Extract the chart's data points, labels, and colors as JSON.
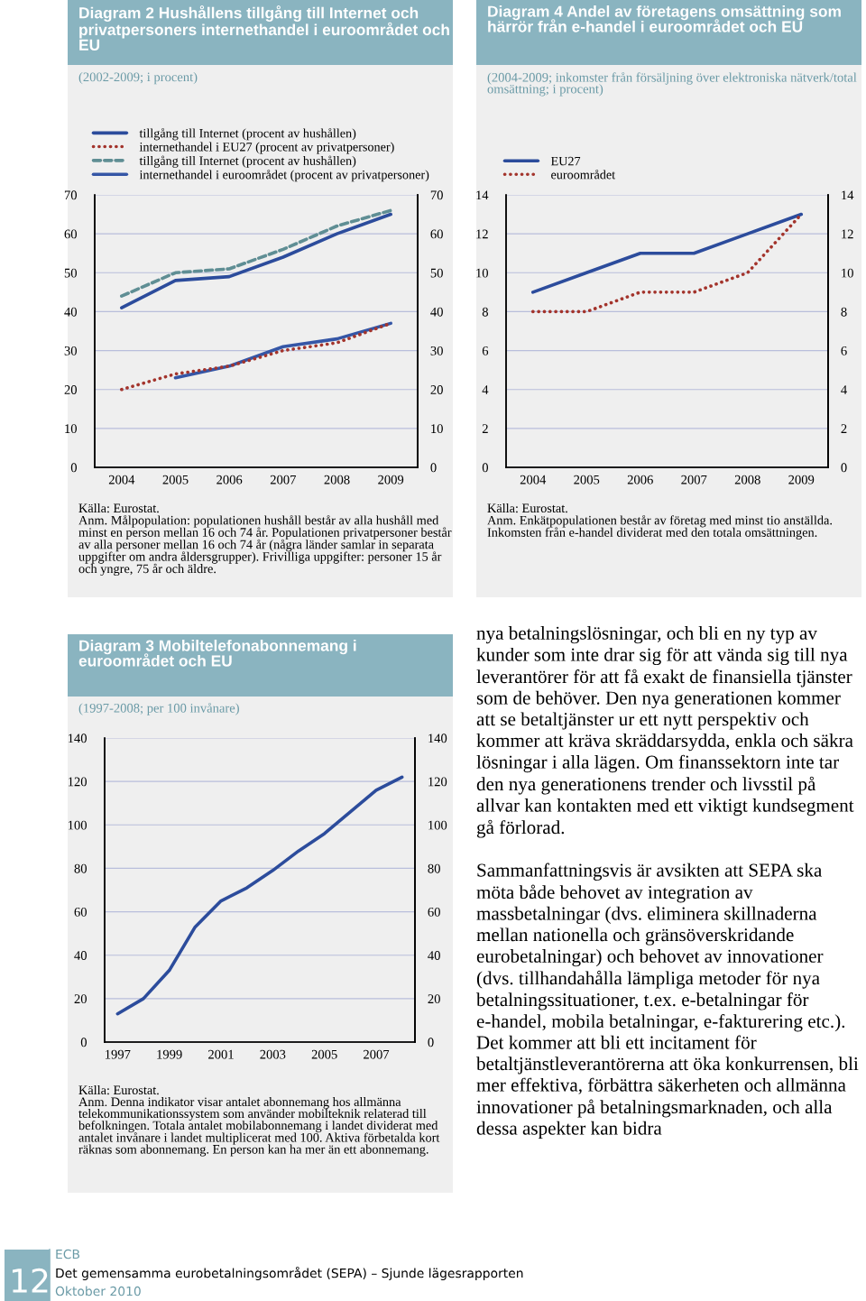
{
  "chart_data": [
    {
      "type": "line",
      "title": "Diagram 2 Hushållens tillgång till Internet och privatpersoners internethandel i euroområdet och EU",
      "subtitle": "(2002-2009; i procent)",
      "categories": [
        "2004",
        "2005",
        "2006",
        "2007",
        "2008",
        "2009"
      ],
      "series": [
        {
          "name": "tillgång till Internet (procent av hushållen)",
          "color": "#2c4c9c",
          "line_style": "solid",
          "values": [
            41,
            48,
            49,
            54,
            60,
            65
          ]
        },
        {
          "name": "internethandel i EU27 (procent av privatpersoner)",
          "color": "#a3342c",
          "line_style": "dotted",
          "values": [
            20,
            24,
            26,
            30,
            32,
            37
          ]
        },
        {
          "name": "tillgång till Internet (procent av hushållen)",
          "color": "#5f8e94",
          "line_style": "dashed",
          "values": [
            44,
            50,
            51,
            56,
            62,
            66
          ]
        },
        {
          "name": "internethandel i euroområdet (procent av privatpersoner)",
          "color": "#3556a6",
          "line_style": "solid",
          "values": [
            null,
            23,
            26,
            31,
            33,
            37
          ]
        }
      ],
      "ylim": [
        0,
        70
      ],
      "yticks": [
        0,
        10,
        20,
        30,
        40,
        50,
        60,
        70
      ],
      "y2lim": [
        0,
        70
      ],
      "y2ticks": [
        0,
        10,
        20,
        30,
        40,
        50,
        60,
        70
      ],
      "grid": true,
      "legend": "top",
      "annotations": [
        "Källa: Eurostat.",
        "Anm. Målpopulation: populationen hushåll består av alla hushåll med minst en person mellan 16 och 74 år. Populationen privatpersoner består av alla personer mellan 16 och 74 år (några länder samlar in separata uppgifter om andra åldersgrupper). Frivilliga uppgifter: personer 15 år och yngre, 75 år och äldre."
      ]
    },
    {
      "type": "line",
      "title": "Diagram 4 Andel av företagens omsättning som härrör från e-handel i euroområdet och EU",
      "subtitle": "(2004-2009; inkomster från försäljning över elektroniska nätverk/total omsättning; i procent)",
      "categories": [
        "2004",
        "2005",
        "2006",
        "2007",
        "2008",
        "2009"
      ],
      "series": [
        {
          "name": "EU27",
          "color": "#2c4c9c",
          "line_style": "solid",
          "values": [
            9,
            10,
            11,
            11,
            12,
            13
          ]
        },
        {
          "name": "euroområdet",
          "color": "#a3342c",
          "line_style": "dotted",
          "values": [
            8,
            8,
            9,
            9,
            10,
            13
          ]
        }
      ],
      "ylim": [
        0,
        14
      ],
      "yticks": [
        0,
        2,
        4,
        6,
        8,
        10,
        12,
        14
      ],
      "y2lim": [
        0,
        14
      ],
      "y2ticks": [
        0,
        2,
        4,
        6,
        8,
        10,
        12,
        14
      ],
      "grid": true,
      "legend": "top",
      "annotations": [
        "Källa: Eurostat.",
        "Anm. Enkätpopulationen består av företag med minst tio anställda. Inkomsten från e-handel dividerat med den totala omsättningen."
      ]
    },
    {
      "type": "line",
      "title": "Diagram 3 Mobiltelefonabonnemang i euroområdet och EU",
      "subtitle": "(1997-2008; per 100 invånare)",
      "categories": [
        "1997",
        null,
        "1999",
        null,
        "2001",
        null,
        "2003",
        null,
        "2005",
        null,
        "2007",
        null
      ],
      "series": [
        {
          "color": "#2c4c9c",
          "line_style": "solid",
          "values": [
            13,
            20,
            33,
            53,
            65,
            71,
            79,
            88,
            96,
            106,
            116,
            122
          ]
        }
      ],
      "ylim": [
        0,
        140
      ],
      "yticks": [
        0,
        20,
        40,
        60,
        80,
        100,
        120,
        140
      ],
      "y2lim": [
        0,
        140
      ],
      "y2ticks": [
        0,
        20,
        40,
        60,
        80,
        100,
        120,
        140
      ],
      "grid": true,
      "annotations": [
        "Källa: Eurostat.",
        "Anm. Denna indikator visar antalet abonnemang hos allmänna telekommunikationssystem som använder mobilteknik relaterad till befolkningen. Totala antalet mobilabonnemang i landet dividerat med antalet invånare i landet multiplicerat med 100. Aktiva förbetalda kort räknas som abonnemang. En person kan ha mer än ett abonnemang."
      ]
    },
    {
      "type": "other",
      "annotations": [
        "nya betalningslösningar, och bli en ny typ av kunder som inte drar sig för att vända sig till nya leverantörer för att få exakt de finansiella tjänster som de behöver. Den nya generationen kommer att se betaltjänster ur ett nytt perspektiv och kommer att kräva skräddarsydda, enkla och säkra lösningar i alla lägen. Om finanssektorn inte tar den nya generationens trender och livsstil på allvar kan kontakten med ett viktigt kundsegment gå förlorad.",
        "Sammanfattningsvis är avsikten att SEPA ska möta både behovet av integration av massbetalningar (dvs. eliminera skillnaderna mellan nationella och gränsöverskridande eurobetalningar) och behovet av innovationer (dvs. tillhandahålla lämpliga metoder för nya betalningssituationer, t.ex. e-betalningar för e-handel, mobila betalningar, e-fakturering etc.). Det kommer att bli ett incitament för betaltjänstleverantörerna att öka konkurrensen, bli mer effektiva, förbättra säkerheten och allmänna innovationer på betalningsmarknaden, och alla dessa aspekter kan bidra"
      ]
    },
    {
      "type": "other",
      "annotations": [
        "12",
        "ECB",
        "Det gemensamma eurobetalningsområdet (SEPA) – Sjunde lägesrapporten",
        "Oktober 2010"
      ]
    }
  ]
}
